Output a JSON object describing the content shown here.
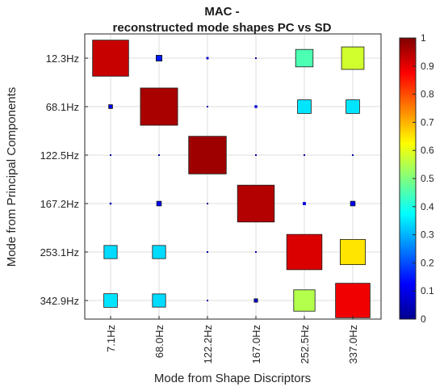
{
  "chart_data": {
    "type": "heatmap",
    "title_line1": "MAC -",
    "title_line2": "reconstructed mode shapes  PC vs SD",
    "xlabel": "Mode from Shape Discriptors",
    "ylabel": "Mode from Principal Components",
    "x_categories": [
      "7.1Hz",
      "68.0Hz",
      "122.2Hz",
      "167.0Hz",
      "252.5Hz",
      "337.0Hz"
    ],
    "y_categories": [
      "12.3Hz",
      "68.1Hz",
      "122.5Hz",
      "167.2Hz",
      "253.1Hz",
      "342.9Hz"
    ],
    "values": [
      [
        0.93,
        0.15,
        0.06,
        0.02,
        0.45,
        0.58
      ],
      [
        0.1,
        0.96,
        0.04,
        0.07,
        0.35,
        0.35
      ],
      [
        0.03,
        0.02,
        0.97,
        0.01,
        0.02,
        0.03
      ],
      [
        0.05,
        0.12,
        0.01,
        0.95,
        0.08,
        0.12
      ],
      [
        0.34,
        0.34,
        0.02,
        0.04,
        0.91,
        0.65
      ],
      [
        0.35,
        0.34,
        0.02,
        0.09,
        0.55,
        0.89
      ]
    ],
    "colorbar": {
      "min": 0,
      "max": 1,
      "ticks": [
        0,
        0.1,
        0.2,
        0.3,
        0.4,
        0.5,
        0.6,
        0.7,
        0.8,
        0.9,
        1
      ],
      "tick_labels": [
        "0",
        "0.1",
        "0.2",
        "0.3",
        "0.4",
        "0.5",
        "0.6",
        "0.7",
        "0.8",
        "0.9",
        "1"
      ],
      "colormap": "jet"
    },
    "grid": true
  }
}
